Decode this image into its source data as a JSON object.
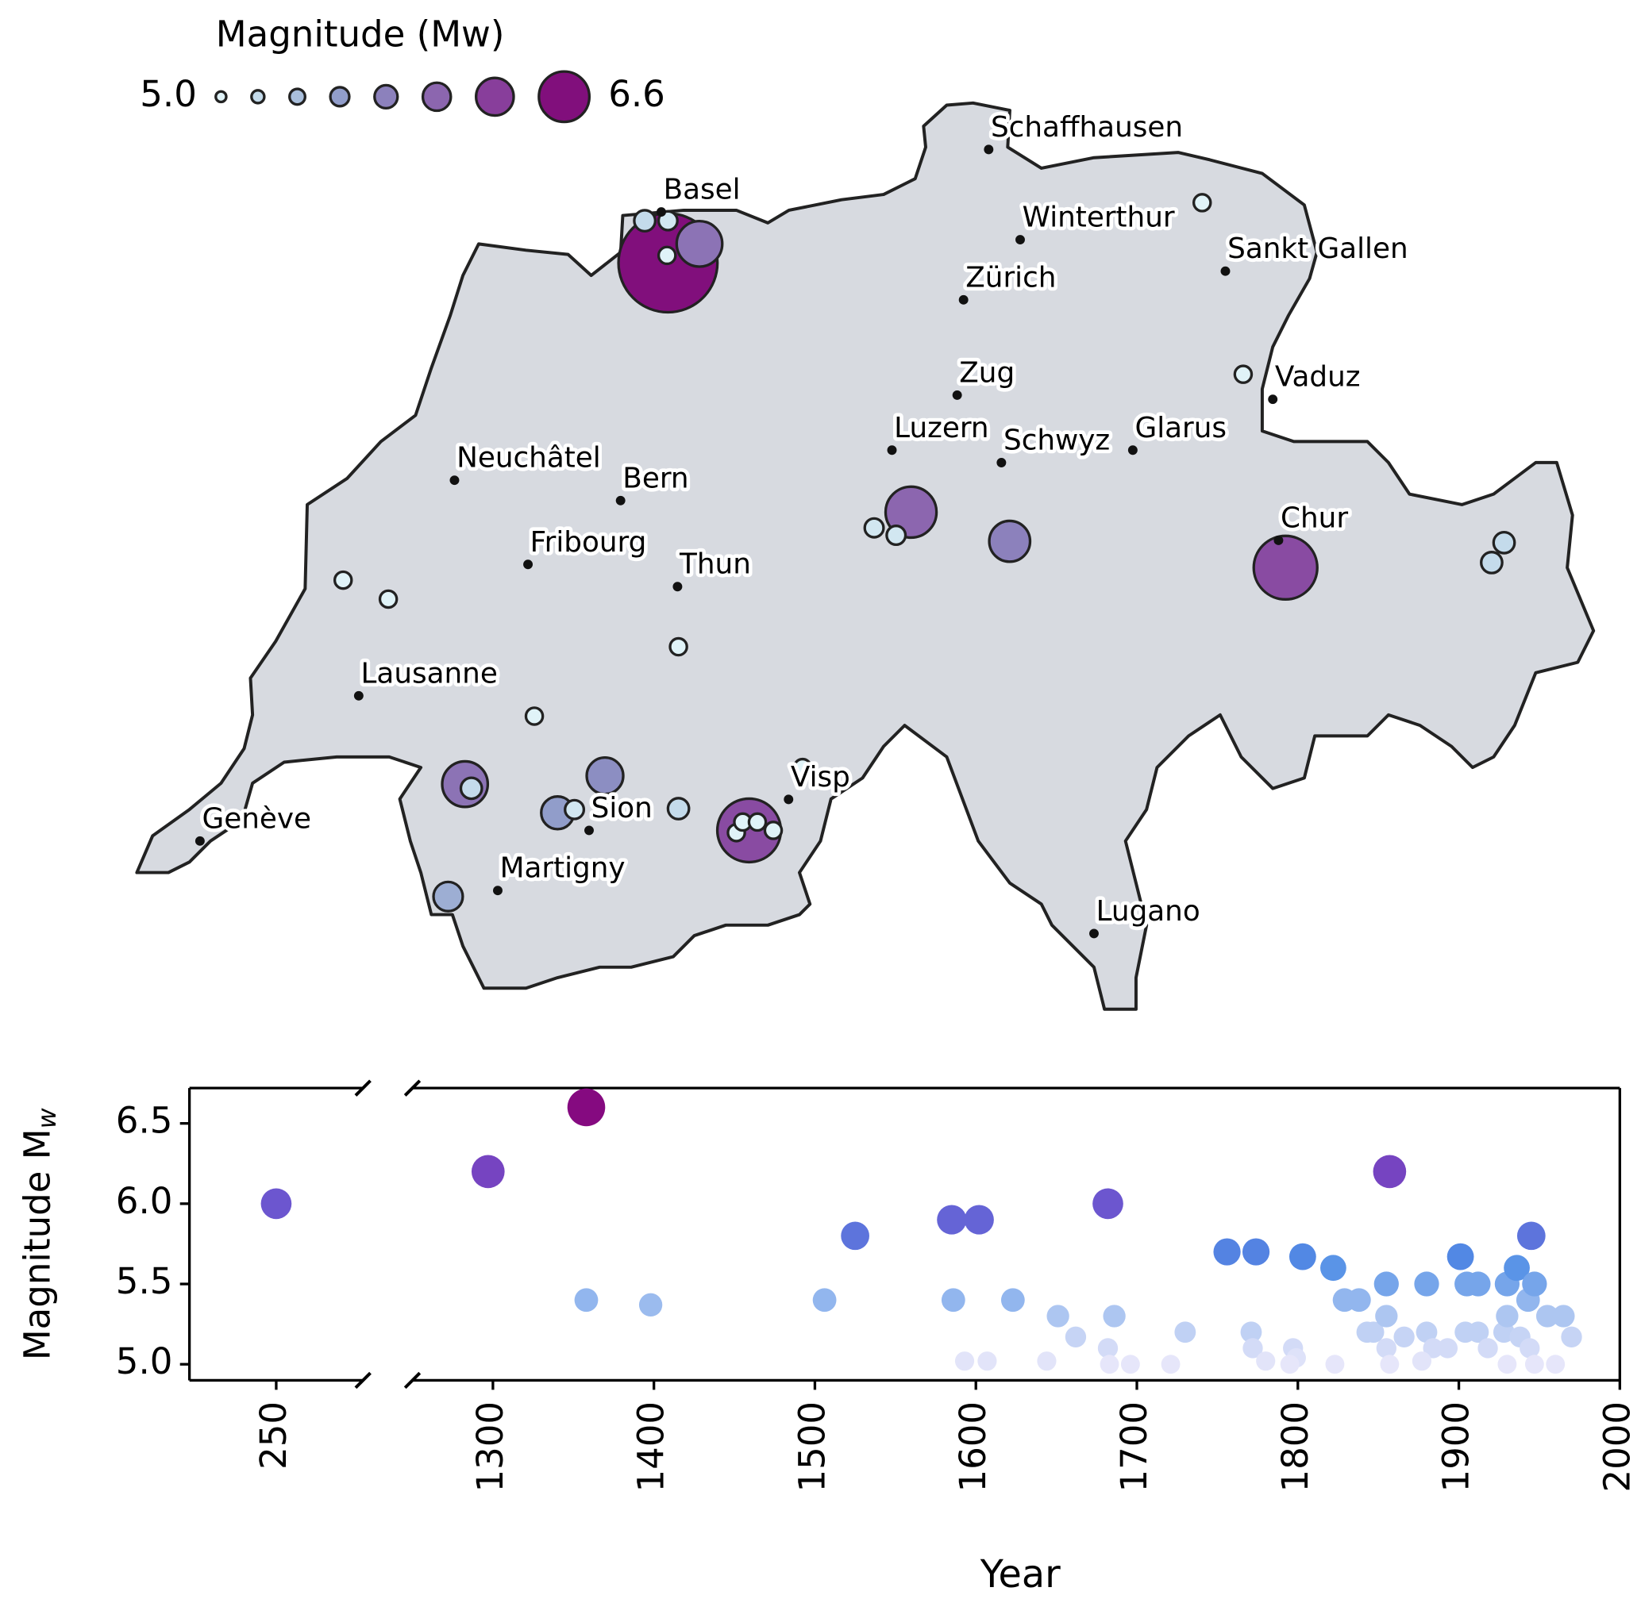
{
  "map": {
    "legend": {
      "title": "Magnitude (Mw)",
      "levels": [
        {
          "value": 5.0,
          "label": "5.0"
        },
        5.2,
        5.4,
        5.6,
        5.8,
        6.0,
        6.3,
        {
          "value": 6.6,
          "label": "6.6"
        }
      ]
    },
    "colormap": [
      "#e0f3f8",
      "#b3cde3",
      "#8c96c6",
      "#8c6bb1",
      "#88419d",
      "#810f7c"
    ],
    "cities": [
      {
        "name": "Schaffhausen",
        "lon": 8.619,
        "lat": 47.695
      },
      {
        "name": "Basel",
        "lon": 7.59,
        "lat": 47.56
      },
      {
        "name": "Winterthur",
        "lon": 8.718,
        "lat": 47.5
      },
      {
        "name": "Sankt Gallen",
        "lon": 9.363,
        "lat": 47.432
      },
      {
        "name": "Zürich",
        "lon": 8.54,
        "lat": 47.37
      },
      {
        "name": "Zug",
        "lon": 8.52,
        "lat": 47.164
      },
      {
        "name": "Vaduz",
        "lon": 9.512,
        "lat": 47.155
      },
      {
        "name": "Luzern",
        "lon": 8.315,
        "lat": 47.045
      },
      {
        "name": "Schwyz",
        "lon": 8.659,
        "lat": 47.018
      },
      {
        "name": "Glarus",
        "lon": 9.072,
        "lat": 47.045
      },
      {
        "name": "Neuchâtel",
        "lon": 6.94,
        "lat": 46.98
      },
      {
        "name": "Bern",
        "lon": 7.462,
        "lat": 46.936
      },
      {
        "name": "Chur",
        "lon": 9.53,
        "lat": 46.85
      },
      {
        "name": "Fribourg",
        "lon": 7.171,
        "lat": 46.798
      },
      {
        "name": "Thun",
        "lon": 7.641,
        "lat": 46.75
      },
      {
        "name": "Lausanne",
        "lon": 6.639,
        "lat": 46.514
      },
      {
        "name": "Visp",
        "lon": 7.99,
        "lat": 46.29
      },
      {
        "name": "Sion",
        "lon": 7.363,
        "lat": 46.223
      },
      {
        "name": "Genève",
        "lon": 6.14,
        "lat": 46.2
      },
      {
        "name": "Martigny",
        "lon": 7.076,
        "lat": 46.093
      },
      {
        "name": "Lugano",
        "lon": 8.95,
        "lat": 46.0
      }
    ],
    "events": [
      {
        "lon": 7.611,
        "lat": 47.45,
        "magnitude": 6.6
      },
      {
        "lon": 7.866,
        "lat": 46.223,
        "magnitude": 6.2
      },
      {
        "lon": 9.552,
        "lat": 46.791,
        "magnitude": 6.2
      },
      {
        "lon": 8.375,
        "lat": 46.911,
        "magnitude": 6.0
      },
      {
        "lon": 7.71,
        "lat": 47.491,
        "magnitude": 5.9
      },
      {
        "lon": 6.973,
        "lat": 46.323,
        "magnitude": 5.9
      },
      {
        "lon": 8.685,
        "lat": 46.848,
        "magnitude": 5.8
      },
      {
        "lon": 7.413,
        "lat": 46.341,
        "magnitude": 5.7
      },
      {
        "lon": 7.264,
        "lat": 46.261,
        "magnitude": 5.6
      },
      {
        "lon": 6.92,
        "lat": 46.08,
        "magnitude": 5.5
      },
      {
        "lon": 10.239,
        "lat": 46.845,
        "magnitude": 5.2
      },
      {
        "lon": 10.2,
        "lat": 46.802,
        "magnitude": 5.2
      },
      {
        "lon": 7.538,
        "lat": 47.541,
        "magnitude": 5.2
      },
      {
        "lon": 6.993,
        "lat": 46.314,
        "magnitude": 5.2
      },
      {
        "lon": 7.644,
        "lat": 46.27,
        "magnitude": 5.2
      },
      {
        "lon": 7.317,
        "lat": 46.268,
        "magnitude": 5.1
      },
      {
        "lon": 8.259,
        "lat": 46.877,
        "magnitude": 5.1
      },
      {
        "lon": 8.328,
        "lat": 46.861,
        "magnitude": 5.1
      },
      {
        "lon": 7.611,
        "lat": 47.541,
        "magnitude": 5.1
      },
      {
        "lon": 7.608,
        "lat": 47.466,
        "magnitude": 5.0
      },
      {
        "lon": 9.29,
        "lat": 47.58,
        "magnitude": 5.0
      },
      {
        "lon": 9.419,
        "lat": 47.209,
        "magnitude": 5.0
      },
      {
        "lon": 6.59,
        "lat": 46.764,
        "magnitude": 5.0
      },
      {
        "lon": 6.732,
        "lat": 46.723,
        "magnitude": 5.0
      },
      {
        "lon": 7.644,
        "lat": 46.62,
        "magnitude": 5.0
      },
      {
        "lon": 7.191,
        "lat": 46.47,
        "magnitude": 5.0
      },
      {
        "lon": 7.826,
        "lat": 46.218,
        "magnitude": 5.0
      },
      {
        "lon": 7.846,
        "lat": 46.241,
        "magnitude": 5.0
      },
      {
        "lon": 7.892,
        "lat": 46.241,
        "magnitude": 5.0
      },
      {
        "lon": 7.942,
        "lat": 46.223,
        "magnitude": 5.0
      },
      {
        "lon": 8.034,
        "lat": 46.359,
        "magnitude": 5.0
      }
    ]
  },
  "chart_data": {
    "type": "scatter",
    "xlabel": "Year",
    "ylabel": {
      "text": "Magnitude M",
      "subscript": "w"
    },
    "x": [
      250,
      1297,
      1358,
      1358,
      1398,
      1506,
      1525,
      1585,
      1602,
      1586,
      1623,
      1593,
      1607,
      1644,
      1651,
      1662,
      1682,
      1686,
      1682,
      1683,
      1696,
      1721,
      1730,
      1756,
      1774,
      1771,
      1772,
      1780,
      1797,
      1799,
      1795,
      1803,
      1822,
      1823,
      1829,
      1838,
      1843,
      1847,
      1857,
      1855,
      1855,
      1855,
      1857,
      1866,
      1880,
      1880,
      1884,
      1877,
      1893,
      1901,
      1905,
      1912,
      1904,
      1912,
      1918,
      1928,
      1930,
      1936,
      1930,
      1930,
      1938,
      1943,
      1945,
      1947,
      1944,
      1947,
      1955,
      1960,
      1965,
      1970
    ],
    "values": [
      6.0,
      6.2,
      6.6,
      5.4,
      5.37,
      5.4,
      5.8,
      5.9,
      5.9,
      5.4,
      5.4,
      5.02,
      5.02,
      5.02,
      5.3,
      5.17,
      6.0,
      5.3,
      5.1,
      5.0,
      5.0,
      5.0,
      5.2,
      5.7,
      5.7,
      5.2,
      5.1,
      5.02,
      5.1,
      5.04,
      5.0,
      5.67,
      5.6,
      5.0,
      5.4,
      5.4,
      5.2,
      5.2,
      6.2,
      5.5,
      5.3,
      5.1,
      5.0,
      5.17,
      5.5,
      5.2,
      5.1,
      5.02,
      5.1,
      5.67,
      5.5,
      5.5,
      5.2,
      5.2,
      5.1,
      5.2,
      5.5,
      5.6,
      5.3,
      5.0,
      5.17,
      5.4,
      5.8,
      5.5,
      5.1,
      5.0,
      5.3,
      5.0,
      5.3,
      5.17
    ],
    "colormap": [
      "#e6e6fa",
      "#a9c4f0",
      "#4f8de6",
      "#6a5ad2",
      "#7a3dbb",
      "#850a80"
    ],
    "xlim": [
      200,
      2000
    ],
    "xbreak": [
      300,
      1250
    ],
    "ylim": [
      4.9,
      6.72
    ],
    "xticks": [
      250,
      1300,
      1400,
      1500,
      1600,
      1700,
      1800,
      1900,
      2000
    ],
    "yticks": [
      {
        "value": 5.0,
        "label": "5.0"
      },
      5.5,
      {
        "value": 6.0,
        "label": "6.0"
      },
      6.5
    ]
  }
}
